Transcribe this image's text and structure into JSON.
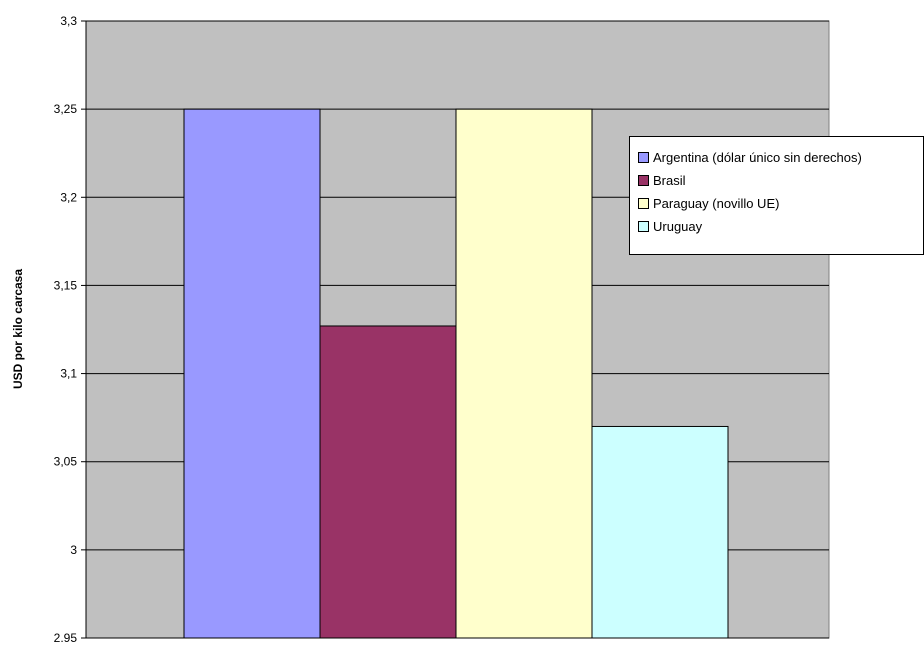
{
  "chart_data": {
    "type": "bar",
    "title": "",
    "xlabel": "",
    "ylabel": "USD por kilo  carcasa",
    "ylim": [
      2.95,
      3.3
    ],
    "yticks": [
      "3,3",
      "3,25",
      "3,2",
      "3,15",
      "3,1",
      "3,05",
      "3",
      "2.95"
    ],
    "ytick_values": [
      3.3,
      3.25,
      3.2,
      3.15,
      3.1,
      3.05,
      3.0,
      2.95
    ],
    "grid": true,
    "legend_position": "right",
    "plot_background": "#c0c0c0",
    "series": [
      {
        "name": "Argentina (dólar único sin derechos)",
        "value": 3.25,
        "color": "#9999ff"
      },
      {
        "name": "Brasil",
        "value": 3.127,
        "color": "#993366"
      },
      {
        "name": "Paraguay (novillo UE)",
        "value": 3.25,
        "color": "#ffffcc"
      },
      {
        "name": "Uruguay",
        "value": 3.07,
        "color": "#ccffff"
      }
    ]
  }
}
